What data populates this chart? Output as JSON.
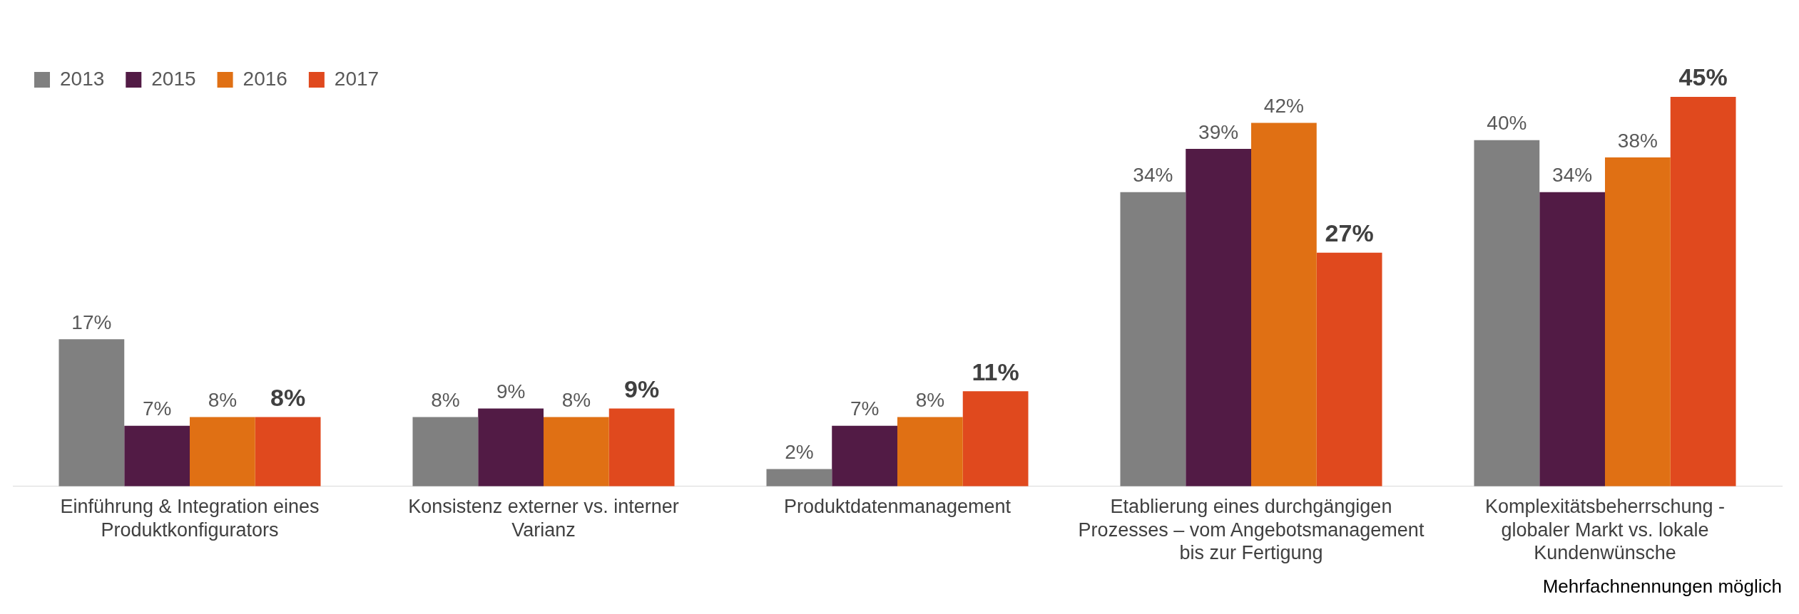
{
  "chart_data": {
    "type": "bar",
    "categories": [
      "Einführung & Integration eines Produktkonfigurators",
      "Konsistenz externer vs. interner Varianz",
      "Produktdatenmanagement",
      "Etablierung eines durchgängigen Prozesses – vom Angebotsmanagement bis zur Fertigung",
      "Komplexitätsbeherrschung - globaler Markt vs. lokale Kundenwünsche"
    ],
    "series": [
      {
        "name": "2013",
        "color": "#808080",
        "values": [
          17,
          8,
          2,
          34,
          40
        ],
        "value_labels": [
          "17%",
          "8%",
          "2%",
          "34%",
          "40%"
        ]
      },
      {
        "name": "2015",
        "color": "#521b45",
        "values": [
          7,
          9,
          7,
          39,
          34
        ],
        "value_labels": [
          "7%",
          "9%",
          "7%",
          "39%",
          "34%"
        ]
      },
      {
        "name": "2016",
        "color": "#e07014",
        "values": [
          8,
          8,
          8,
          42,
          38
        ],
        "value_labels": [
          "8%",
          "8%",
          "8%",
          "42%",
          "38%"
        ]
      },
      {
        "name": "2017",
        "color": "#e0491e",
        "values": [
          8,
          9,
          11,
          27,
          45
        ],
        "value_labels": [
          "8%",
          "9%",
          "11%",
          "27%",
          "45%"
        ]
      }
    ],
    "legend": "top left",
    "grid": false,
    "annotations": [
      "Mehrfachnennungen möglich"
    ]
  }
}
